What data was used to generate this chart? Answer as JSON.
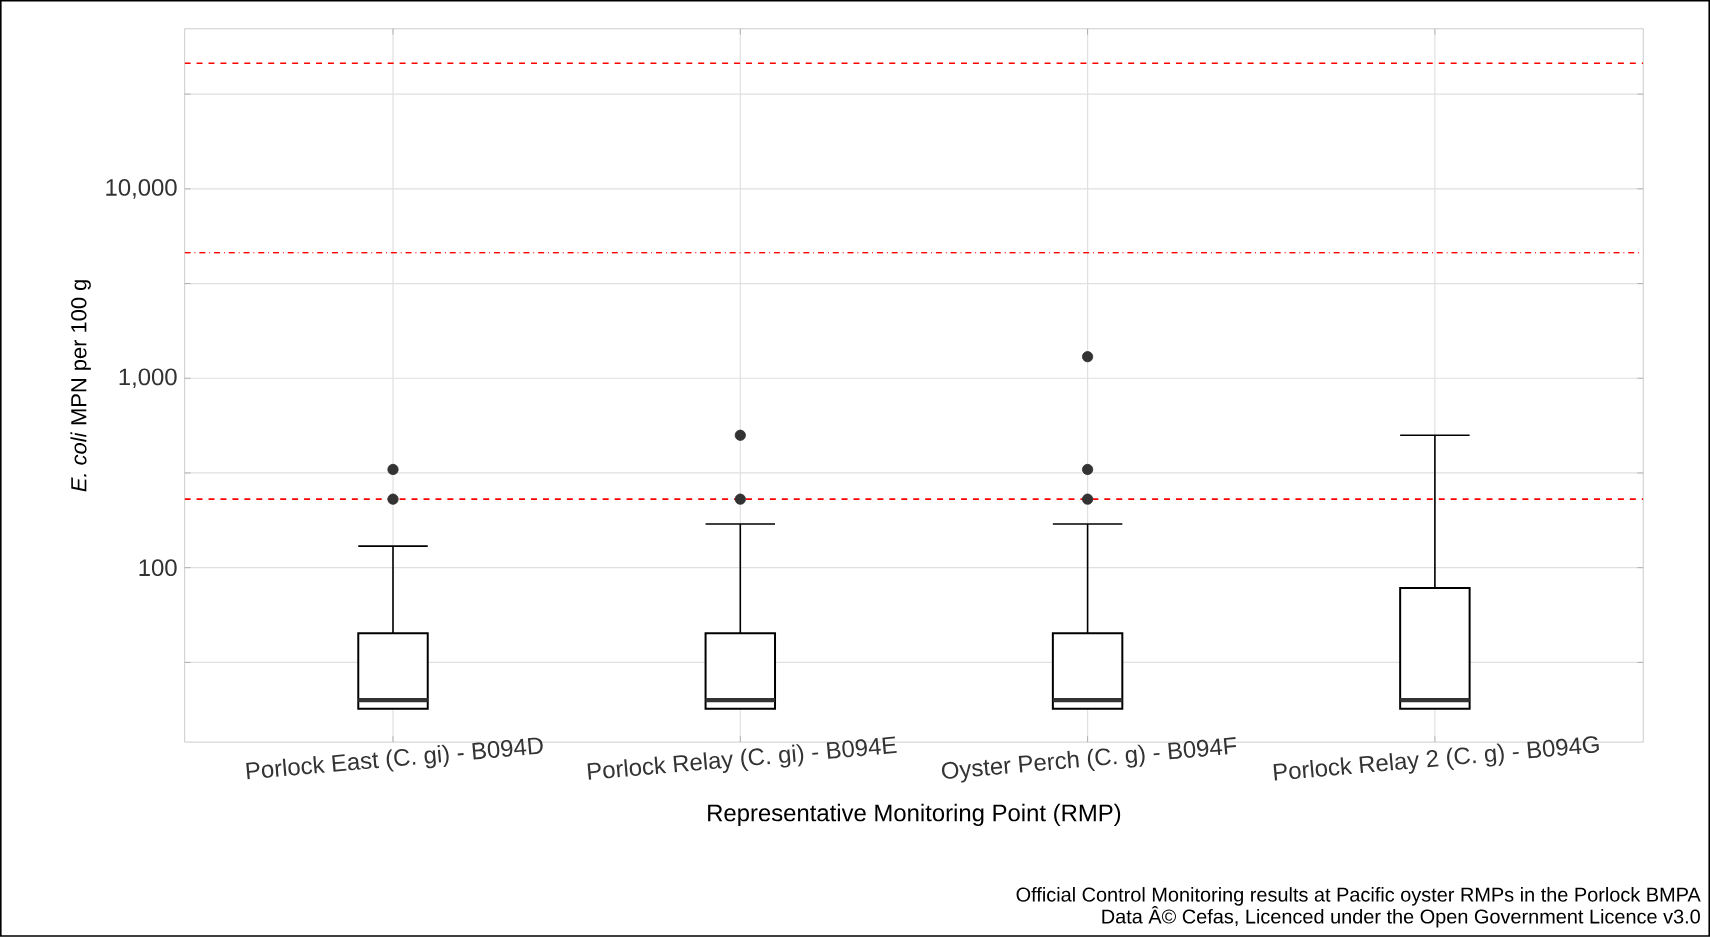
{
  "chart_data": {
    "type": "box",
    "xlabel": "Representative Monitoring Point (RMP)",
    "ylabel": "*E. coli* MPN per 100 g",
    "categories": [
      "Porlock East (C. gi) - B094D",
      "Porlock Relay (C. gi) - B094E",
      "Oyster Perch (C. g) - B094F",
      "Porlock Relay 2 (C. g) - B094G"
    ],
    "log": true,
    "ylim": [
      12,
      70000
    ],
    "yticks": [
      {
        "value": 31.62,
        "label": null
      },
      {
        "value": 100,
        "label": "100"
      },
      {
        "value": 316.2,
        "label": null
      },
      {
        "value": 1000,
        "label": "1,000"
      },
      {
        "value": 3162,
        "label": null
      },
      {
        "value": 10000,
        "label": "10,000"
      },
      {
        "value": 31623,
        "label": null
      }
    ],
    "grid": true,
    "series": [
      {
        "type": "box",
        "color": "#ffffff",
        "boxes": [
          {
            "low": 18,
            "q1": 18,
            "median": 20,
            "q3": 45,
            "high": 130,
            "outliers": [
              230,
              330
            ]
          },
          {
            "low": 18,
            "q1": 18,
            "median": 20,
            "q3": 45,
            "high": 170,
            "outliers": [
              230,
              500
            ]
          },
          {
            "low": 18,
            "q1": 18,
            "median": 20,
            "q3": 45,
            "high": 170,
            "outliers": [
              230,
              330,
              1300
            ]
          },
          {
            "low": 18,
            "q1": 18,
            "median": 20,
            "q3": 78,
            "high": 500
          }
        ]
      }
    ],
    "ref_lines": [
      {
        "axis": "y",
        "value": 46000,
        "label": null,
        "color": "#ff0000",
        "line_style": "dashed"
      },
      {
        "axis": "y",
        "value": 4600,
        "label": null,
        "color": "#ff0000",
        "line_style": "dashdot"
      },
      {
        "axis": "y",
        "value": 230,
        "label": null,
        "color": "#ff0000",
        "line_style": "dashed"
      }
    ],
    "annotations": [
      "Official Control Monitoring results at Pacific oyster RMPs in the Porlock BMPA",
      "Data Â© Cefas, Licenced under the Open Government Licence v3.0"
    ]
  }
}
